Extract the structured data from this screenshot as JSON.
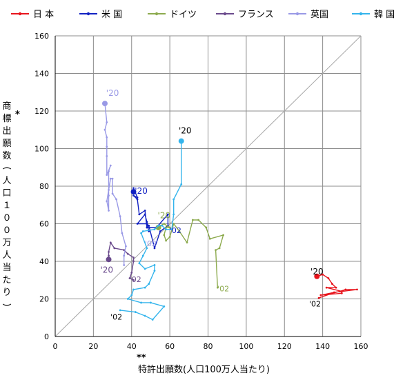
{
  "chart_data": {
    "type": "line",
    "xlabel": "特許出願数(人口100万人当たり)",
    "xlabel_mark": "**",
    "ylabel": "商標出願数(人口１００万人当たり)",
    "ylabel_mark": "*",
    "xlim": [
      0,
      160
    ],
    "ylim": [
      0,
      160
    ],
    "xticks": [
      "0",
      "20",
      "40",
      "60",
      "80",
      "100",
      "120",
      "140",
      "160"
    ],
    "yticks": [
      "0",
      "20",
      "40",
      "60",
      "80",
      "100",
      "120",
      "140",
      "160"
    ],
    "grid": true,
    "diagonal_line": true,
    "legend_position": "top",
    "series": [
      {
        "name": "日 本",
        "color": "#e8141c",
        "points": [
          [
            138,
            20.5
          ],
          [
            145,
            23
          ],
          [
            149,
            24
          ],
          [
            152,
            25
          ],
          [
            158,
            25
          ],
          [
            146,
            23.5
          ],
          [
            139,
            22
          ],
          [
            150,
            23
          ],
          [
            150,
            24
          ],
          [
            142,
            26
          ],
          [
            147,
            26
          ],
          [
            145,
            28
          ],
          [
            143,
            31
          ],
          [
            140,
            33
          ],
          [
            137,
            32
          ]
        ],
        "label_start": "'02",
        "label_end": "'20"
      },
      {
        "name": "米 国",
        "color": "#1121c2",
        "points": [
          [
            49,
            56
          ],
          [
            48,
            61
          ],
          [
            47,
            65
          ],
          [
            43,
            60
          ],
          [
            48,
            60
          ],
          [
            49,
            59
          ],
          [
            52,
            47
          ],
          [
            55,
            56
          ],
          [
            59,
            59
          ],
          [
            59,
            65
          ],
          [
            53,
            58
          ],
          [
            48,
            58
          ],
          [
            47,
            67
          ],
          [
            44,
            65
          ],
          [
            43,
            73
          ],
          [
            41,
            75
          ],
          [
            43,
            74
          ],
          [
            41,
            79
          ],
          [
            41,
            77
          ]
        ],
        "label_start": "'02",
        "label_end": "'20"
      },
      {
        "name": "ドイツ",
        "color": "#8caa4d",
        "points": [
          [
            85,
            26
          ],
          [
            84,
            46
          ],
          [
            86,
            47
          ],
          [
            88,
            54
          ],
          [
            81,
            52
          ],
          [
            79,
            58
          ],
          [
            75,
            62
          ],
          [
            72,
            62
          ],
          [
            69,
            50
          ],
          [
            65,
            56
          ],
          [
            62,
            60
          ],
          [
            60,
            53
          ],
          [
            58,
            51
          ],
          [
            57,
            54
          ],
          [
            58,
            58
          ],
          [
            60,
            58
          ],
          [
            57,
            60
          ],
          [
            55,
            59
          ],
          [
            54,
            58
          ]
        ],
        "label_start": "'02",
        "label_end": "'20"
      },
      {
        "name": "フランス",
        "color": "#6a4a8c",
        "points": [
          [
            41,
            30
          ],
          [
            39,
            31
          ],
          [
            40,
            34
          ],
          [
            41,
            40
          ],
          [
            41,
            42
          ],
          [
            38,
            44
          ],
          [
            36,
            46
          ],
          [
            31,
            47
          ],
          [
            29,
            50
          ],
          [
            28,
            45
          ],
          [
            28,
            43
          ],
          [
            28,
            41
          ]
        ],
        "label_start": "'02",
        "label_end": "'20"
      },
      {
        "name": "英国",
        "color": "#9999e6",
        "points": [
          [
            36,
            38
          ],
          [
            36,
            43
          ],
          [
            37,
            48
          ],
          [
            35,
            55
          ],
          [
            34,
            64
          ],
          [
            32,
            73
          ],
          [
            30,
            76
          ],
          [
            30,
            84
          ],
          [
            29,
            84
          ],
          [
            28,
            78
          ],
          [
            27,
            72
          ],
          [
            28,
            67
          ],
          [
            28,
            75
          ],
          [
            28,
            88
          ],
          [
            29,
            91
          ],
          [
            27,
            86
          ],
          [
            27,
            96
          ],
          [
            27,
            101
          ],
          [
            27,
            106
          ],
          [
            26,
            110
          ],
          [
            27,
            114
          ],
          [
            26,
            124
          ]
        ],
        "label_start": "'02",
        "label_end": "'20"
      },
      {
        "name": "韓 国",
        "color": "#33b4ec",
        "points": [
          [
            34,
            14
          ],
          [
            42,
            13
          ],
          [
            47,
            11
          ],
          [
            51,
            9
          ],
          [
            57,
            16
          ],
          [
            50,
            18
          ],
          [
            45,
            18
          ],
          [
            38,
            20
          ],
          [
            40,
            22
          ],
          [
            41,
            25
          ],
          [
            47,
            26
          ],
          [
            49,
            28
          ],
          [
            52,
            35
          ],
          [
            52,
            38
          ],
          [
            47,
            36
          ],
          [
            44,
            39
          ],
          [
            46,
            43
          ],
          [
            48,
            47
          ],
          [
            45,
            55
          ],
          [
            46,
            56
          ],
          [
            52,
            57
          ],
          [
            54,
            59
          ],
          [
            56,
            59
          ],
          [
            58,
            57
          ],
          [
            61,
            57
          ],
          [
            62,
            65
          ],
          [
            62,
            73
          ],
          [
            66,
            81
          ],
          [
            66,
            104
          ]
        ],
        "label_start": "'02",
        "label_end": "'20"
      }
    ],
    "annotations": [
      {
        "text": "'20",
        "x": 137,
        "y": 33,
        "color": "#000000",
        "series": "日 本"
      },
      {
        "text": "'02",
        "x": 136,
        "y": 16,
        "color": "#000000",
        "series": "日 本"
      },
      {
        "text": "'20",
        "x": 45,
        "y": 76,
        "color": "#1121c2",
        "series": "米 国"
      },
      {
        "text": "'02",
        "x": 63,
        "y": 55,
        "color": "#1121c2",
        "series": "米 国"
      },
      {
        "text": "'20",
        "x": 57,
        "y": 63,
        "color": "#8caa4d",
        "series": "ドイツ"
      },
      {
        "text": "'02",
        "x": 88,
        "y": 24,
        "color": "#8caa4d",
        "series": "ドイツ"
      },
      {
        "text": "'20",
        "x": 27,
        "y": 34,
        "color": "#6a4a8c",
        "series": "フランス"
      },
      {
        "text": "'02",
        "x": 42,
        "y": 29,
        "color": "#6a4a8c",
        "series": "フランス"
      },
      {
        "text": "'20",
        "x": 30,
        "y": 128,
        "color": "#9999e6",
        "series": "英国"
      },
      {
        "text": "'02",
        "x": 50,
        "y": 48,
        "color": "#9999e6",
        "series": "英国"
      },
      {
        "text": "'20",
        "x": 68,
        "y": 108,
        "color": "#000000",
        "series": "韓 国"
      },
      {
        "text": "'02",
        "x": 32,
        "y": 9,
        "color": "#000000",
        "series": "韓 国"
      }
    ]
  }
}
